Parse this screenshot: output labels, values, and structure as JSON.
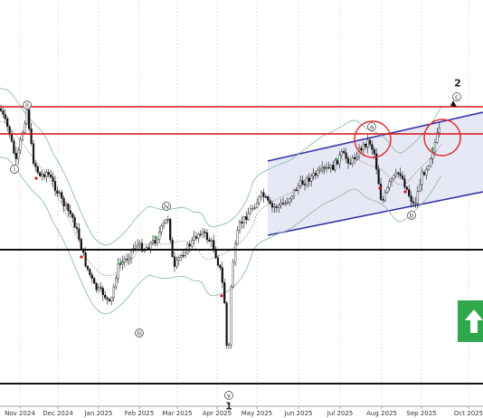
{
  "chart_data": {
    "type": "candlestick",
    "x_ticks": [
      "Nov 2024",
      "Dec 2024",
      "Jan 2025",
      "Feb 2025",
      "Mar 2025",
      "Apr 2025",
      "May 2025",
      "Jun 2025",
      "Jul 2025",
      "Aug 2025",
      "Sep 2025",
      "Oct 2025"
    ],
    "grid": "vertical",
    "horizontal_levels": [
      {
        "color": "#dd1111",
        "value": 118
      },
      {
        "color": "#dd1111",
        "value": 148
      },
      {
        "color": "#111111",
        "value": 276
      },
      {
        "color": "#111111",
        "value": 424
      }
    ],
    "channel": {
      "color": "#3333aa",
      "fill": "#dfe0f3"
    },
    "wave_labels": [
      {
        "text": "ii"
      },
      {
        "text": "i"
      },
      {
        "text": "iii"
      },
      {
        "text": "iv"
      },
      {
        "text": "v"
      },
      {
        "text": "1"
      },
      {
        "text": "a"
      },
      {
        "text": "b"
      },
      {
        "text": "c"
      },
      {
        "text": "2"
      }
    ],
    "circle_color": "#e03030",
    "arrow_color": "#2ea84a",
    "candle_color": "#111111",
    "band_color": "#8fbfa8"
  }
}
